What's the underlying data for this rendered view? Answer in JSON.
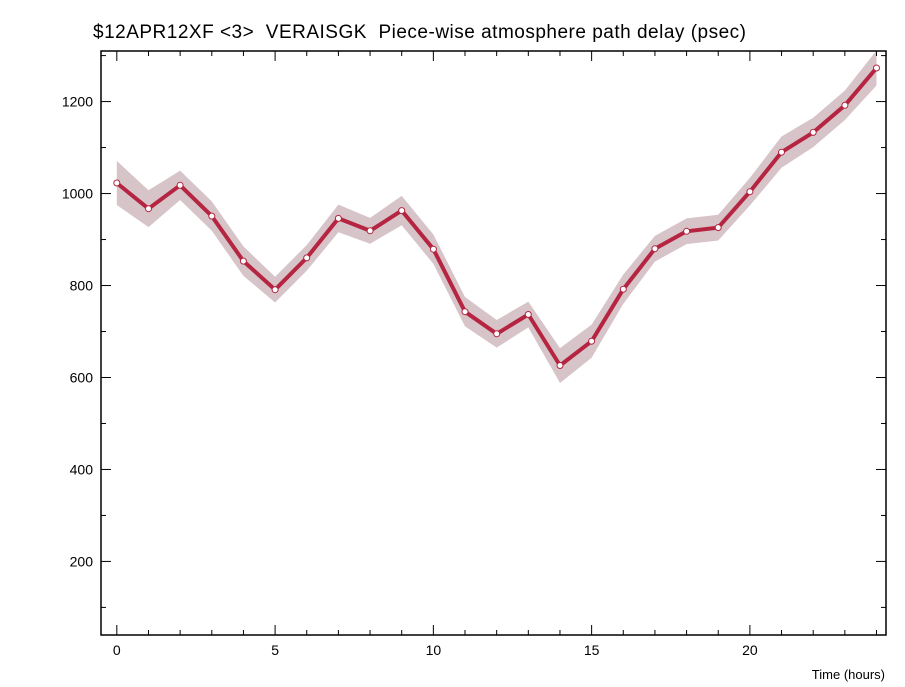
{
  "chart_data": {
    "type": "line",
    "title": "$12APR12XF <3>  VERAISGK  Piece-wise atmosphere path delay (psec)",
    "xlabel": "Time (hours)",
    "ylabel": "",
    "xlim": [
      -0.5,
      24.3
    ],
    "ylim": [
      40,
      1310
    ],
    "x_ticks": [
      0,
      5,
      10,
      15,
      20
    ],
    "y_ticks": [
      200,
      400,
      600,
      800,
      1000,
      1200
    ],
    "grid": false,
    "colors": {
      "line": "#b52440",
      "band": "#d7c4c8",
      "marker_fill": "#ffffff"
    },
    "series": [
      {
        "x": [
          0,
          1,
          2,
          3,
          4,
          5,
          6,
          7,
          8,
          9,
          10,
          11,
          12,
          13,
          14,
          15,
          16,
          17,
          18,
          19,
          20,
          21,
          22,
          23,
          24
        ],
        "values": [
          1023,
          967,
          1018,
          951,
          853,
          791,
          860,
          946,
          919,
          963,
          879,
          743,
          695,
          737,
          626,
          679,
          792,
          880,
          918,
          926,
          1004,
          1090,
          1133,
          1192,
          1273
        ],
        "uncertainty": [
          48,
          40,
          32,
          32,
          32,
          28,
          28,
          30,
          28,
          32,
          32,
          32,
          30,
          28,
          38,
          36,
          32,
          28,
          28,
          28,
          30,
          34,
          32,
          32,
          38
        ]
      }
    ]
  }
}
